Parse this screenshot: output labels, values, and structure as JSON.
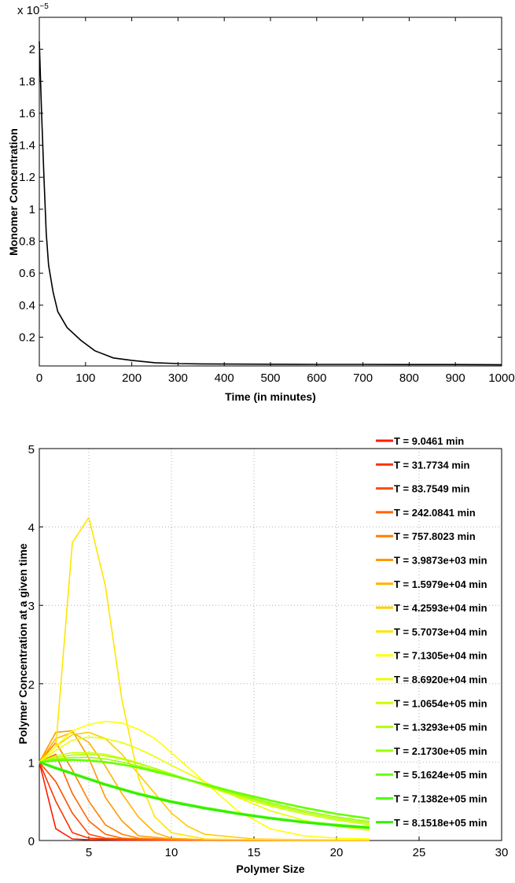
{
  "chart_data": [
    {
      "type": "line",
      "title": "",
      "xlabel": "Time (in minutes)",
      "ylabel": "Monomer Concentration",
      "y_exponent": "x 10",
      "y_exponent_power": "−5",
      "xlim": [
        0,
        1000
      ],
      "ylim": [
        0.02,
        2.2
      ],
      "y_scale_factor": 1e-05,
      "xticks": [
        "0",
        "100",
        "200",
        "300",
        "400",
        "500",
        "600",
        "700",
        "800",
        "900",
        "1000"
      ],
      "yticks": [
        "0.2",
        "0.4",
        "0.6",
        "0.8",
        "1",
        "1.2",
        "1.4",
        "1.6",
        "1.8",
        "2"
      ],
      "grid": false,
      "series": [
        {
          "color": "#000000",
          "x": [
            0,
            5,
            10,
            15,
            20,
            30,
            40,
            60,
            90,
            120,
            160,
            200,
            250,
            300,
            350,
            400,
            500,
            600,
            700,
            800,
            900,
            1000
          ],
          "y": [
            2.05,
            1.6,
            1.2,
            0.85,
            0.65,
            0.48,
            0.36,
            0.26,
            0.18,
            0.115,
            0.07,
            0.055,
            0.04,
            0.035,
            0.033,
            0.032,
            0.031,
            0.03,
            0.03,
            0.029,
            0.029,
            0.028
          ]
        }
      ]
    },
    {
      "type": "line",
      "title": "",
      "xlabel": "Polymer Size",
      "ylabel": "Polymer Concentration at a given time",
      "xlim": [
        2,
        30
      ],
      "ylim": [
        0,
        5
      ],
      "plot_xmax": 22,
      "xticks": [
        "5",
        "10",
        "15",
        "20",
        "25",
        "30"
      ],
      "yticks": [
        "0",
        "1",
        "2",
        "3",
        "4",
        "5"
      ],
      "grid": true,
      "legend_position": "right",
      "series": [
        {
          "name": "T =  9.0461 min",
          "color": "#ff1a00",
          "x": [
            2,
            3,
            4,
            5,
            6,
            7,
            8,
            10,
            12,
            15,
            18,
            20,
            22
          ],
          "y": [
            1,
            0.15,
            0.02,
            0.01,
            0.01,
            0.005,
            0.005,
            0.003,
            0.003,
            0.002,
            0.002,
            0.002,
            0.002
          ]
        },
        {
          "name": "T = 31.7734 min",
          "color": "#ff3300",
          "x": [
            2,
            3,
            4,
            5,
            6,
            7,
            8,
            10,
            12,
            15,
            18,
            20,
            22
          ],
          "y": [
            1,
            0.5,
            0.1,
            0.03,
            0.02,
            0.01,
            0.01,
            0.005,
            0.005,
            0.004,
            0.004,
            0.004,
            0.004
          ]
        },
        {
          "name": "T = 83.7549 min",
          "color": "#ff4d00",
          "x": [
            2,
            3,
            4,
            5,
            6,
            7,
            8,
            10,
            12,
            15,
            18,
            20,
            22
          ],
          "y": [
            1,
            0.75,
            0.35,
            0.08,
            0.03,
            0.02,
            0.01,
            0.01,
            0.008,
            0.006,
            0.005,
            0.005,
            0.005
          ]
        },
        {
          "name": "T = 242.0841 min",
          "color": "#ff6600",
          "x": [
            2,
            3,
            4,
            5,
            6,
            7,
            8,
            10,
            12,
            15,
            18,
            20,
            22
          ],
          "y": [
            1,
            1.1,
            0.6,
            0.25,
            0.08,
            0.03,
            0.02,
            0.01,
            0.01,
            0.008,
            0.006,
            0.006,
            0.006
          ]
        },
        {
          "name": "T = 757.8023 min",
          "color": "#ff8000",
          "x": [
            2,
            3,
            4,
            5,
            6,
            7,
            8,
            10,
            12,
            15,
            18,
            20,
            22
          ],
          "y": [
            1,
            1.25,
            0.9,
            0.5,
            0.2,
            0.08,
            0.03,
            0.015,
            0.01,
            0.008,
            0.007,
            0.007,
            0.007
          ]
        },
        {
          "name": "T = 3.9873e+03 min",
          "color": "#ff9900",
          "x": [
            2,
            3,
            4,
            5,
            6,
            7,
            8,
            10,
            12,
            15,
            18,
            20,
            22
          ],
          "y": [
            1,
            1.38,
            1.4,
            1.05,
            0.55,
            0.25,
            0.06,
            0.02,
            0.01,
            0.008,
            0.007,
            0.007,
            0.007
          ]
        },
        {
          "name": "T = 1.5979e+04 min",
          "color": "#ffb300",
          "x": [
            2,
            3,
            4,
            5,
            6,
            7,
            8,
            9,
            10,
            12,
            15,
            18,
            20,
            22
          ],
          "y": [
            1,
            1.3,
            1.38,
            1.25,
            0.95,
            0.6,
            0.3,
            0.1,
            0.03,
            0.01,
            0.008,
            0.007,
            0.007,
            0.007
          ]
        },
        {
          "name": "T = 4.2593e+04 min",
          "color": "#ffcc00",
          "x": [
            2,
            3,
            4,
            5,
            6,
            7,
            8,
            9,
            10,
            11,
            12,
            15,
            18,
            20,
            22
          ],
          "y": [
            1,
            1.2,
            1.35,
            1.38,
            1.3,
            1.1,
            0.85,
            0.6,
            0.35,
            0.18,
            0.08,
            0.02,
            0.01,
            0.008,
            0.007
          ]
        },
        {
          "name": "T = 5.7073e+04 min",
          "color": "#ffe600",
          "x": [
            2,
            3,
            4,
            5,
            6,
            7,
            8,
            9,
            10,
            12,
            15,
            18,
            20,
            22
          ],
          "y": [
            1,
            1.2,
            3.8,
            4.12,
            3.25,
            1.8,
            0.8,
            0.3,
            0.1,
            0.02,
            0.01,
            0.008,
            0.007,
            0.007
          ]
        },
        {
          "name": "T = 7.1305e+04 min",
          "color": "#ffff00",
          "x": [
            2,
            3,
            4,
            5,
            6,
            7,
            8,
            9,
            10,
            12,
            14,
            16,
            18,
            20,
            22
          ],
          "y": [
            1,
            1.2,
            1.4,
            1.48,
            1.52,
            1.5,
            1.42,
            1.3,
            1.12,
            0.75,
            0.38,
            0.15,
            0.06,
            0.03,
            0.02
          ]
        },
        {
          "name": "T = 8.6920e+04 min",
          "color": "#e6ff00",
          "x": [
            2,
            3,
            4,
            5,
            6,
            7,
            8,
            9,
            10,
            12,
            14,
            16,
            18,
            20,
            22
          ],
          "y": [
            1,
            1.15,
            1.28,
            1.32,
            1.3,
            1.25,
            1.17,
            1.07,
            0.96,
            0.75,
            0.55,
            0.38,
            0.26,
            0.18,
            0.13
          ]
        },
        {
          "name": "T = 1.0654e+05 min",
          "color": "#ccff00",
          "x": [
            2,
            3,
            4,
            5,
            6,
            7,
            8,
            9,
            10,
            12,
            14,
            16,
            18,
            20,
            22
          ],
          "y": [
            1,
            1.08,
            1.12,
            1.12,
            1.1,
            1.05,
            0.99,
            0.92,
            0.85,
            0.7,
            0.56,
            0.44,
            0.34,
            0.26,
            0.2
          ]
        },
        {
          "name": "T = 1.3293e+05 min",
          "color": "#b3ff00",
          "x": [
            2,
            3,
            4,
            5,
            6,
            7,
            8,
            9,
            10,
            12,
            14,
            16,
            18,
            20,
            22
          ],
          "y": [
            1,
            1.06,
            1.09,
            1.1,
            1.08,
            1.04,
            0.98,
            0.92,
            0.85,
            0.71,
            0.58,
            0.46,
            0.36,
            0.28,
            0.22
          ]
        },
        {
          "name": "T =  2.1730e+05 min",
          "color": "#99ff00",
          "x": [
            2,
            3,
            4,
            5,
            6,
            7,
            8,
            9,
            10,
            12,
            14,
            16,
            18,
            20,
            22
          ],
          "y": [
            1,
            1.04,
            1.06,
            1.06,
            1.04,
            1.0,
            0.95,
            0.9,
            0.84,
            0.71,
            0.59,
            0.48,
            0.38,
            0.3,
            0.24
          ]
        },
        {
          "name": "T = 5.1624e+05 min",
          "color": "#66ff00",
          "x": [
            2,
            3,
            4,
            5,
            6,
            7,
            8,
            9,
            10,
            12,
            14,
            16,
            18,
            20,
            22
          ],
          "y": [
            1,
            1.02,
            1.03,
            1.02,
            1.0,
            0.97,
            0.93,
            0.88,
            0.83,
            0.72,
            0.61,
            0.51,
            0.42,
            0.34,
            0.28
          ]
        },
        {
          "name": "T =  7.1382e+05 min",
          "color": "#4dff00",
          "x": [
            2,
            3,
            4,
            5,
            6,
            7,
            8,
            9,
            10,
            12,
            14,
            16,
            18,
            20,
            22
          ],
          "y": [
            1,
            0.93,
            0.86,
            0.79,
            0.72,
            0.66,
            0.6,
            0.55,
            0.5,
            0.42,
            0.35,
            0.29,
            0.24,
            0.2,
            0.17
          ]
        },
        {
          "name": "T = 8.1518e+05 min",
          "color": "#33ee00",
          "x": [
            2,
            3,
            4,
            5,
            6,
            7,
            8,
            9,
            10,
            12,
            14,
            16,
            18,
            20,
            22
          ],
          "y": [
            1,
            0.92,
            0.85,
            0.78,
            0.71,
            0.65,
            0.59,
            0.54,
            0.49,
            0.41,
            0.34,
            0.28,
            0.23,
            0.19,
            0.16
          ]
        }
      ]
    }
  ]
}
